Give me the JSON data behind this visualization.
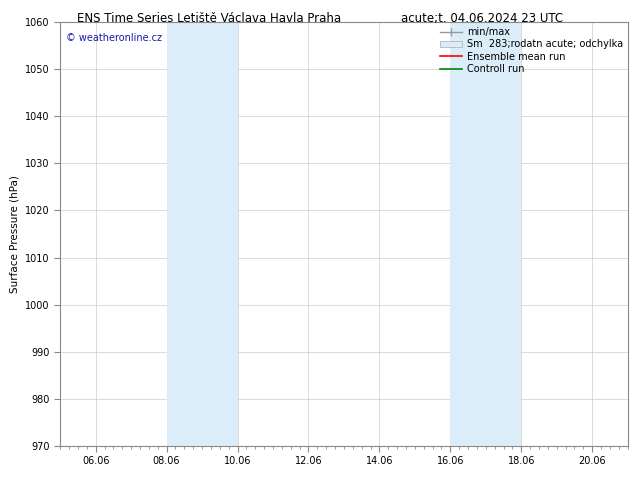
{
  "title_left": "ENS Time Series Letiště Václava Havla Praha",
  "title_right": "acute;t. 04.06.2024 23 UTC",
  "ylabel": "Surface Pressure (hPa)",
  "ylim": [
    970,
    1060
  ],
  "yticks": [
    970,
    980,
    990,
    1000,
    1010,
    1020,
    1030,
    1040,
    1050,
    1060
  ],
  "xtick_labels": [
    "06.06",
    "08.06",
    "10.06",
    "12.06",
    "14.06",
    "16.06",
    "18.06",
    "20.06"
  ],
  "xtick_positions": [
    1,
    3,
    5,
    7,
    9,
    11,
    13,
    15
  ],
  "xlim": [
    0,
    16
  ],
  "shaded_bands": [
    {
      "x_start": 3.0,
      "x_end": 5.0,
      "color": "#daedf8",
      "alpha": 1.0
    },
    {
      "x_start": 11.0,
      "x_end": 13.0,
      "color": "#daedf8",
      "alpha": 1.0
    }
  ],
  "watermark": "© weatheronline.cz",
  "watermark_color": "#1a1aaa",
  "bg_color": "#ffffff",
  "plot_bg_color": "#ffffff",
  "grid_color": "#cccccc",
  "title_fontsize": 8.5,
  "ylabel_fontsize": 7.5,
  "tick_fontsize": 7,
  "legend_fontsize": 7,
  "watermark_fontsize": 7
}
